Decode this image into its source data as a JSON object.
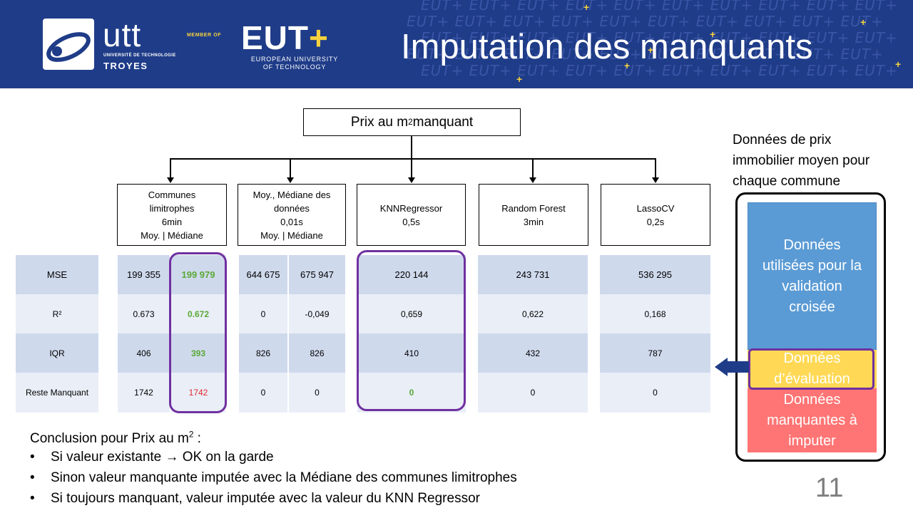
{
  "header": {
    "title": "Imputation des manquants",
    "utt_logo_text": "utt",
    "utt_subtitle": "UNIVERSITÉ DE TECHNOLOGIE",
    "utt_city": "TROYES",
    "member_of": "MEMBER OF",
    "eut_logo_text": "EUT",
    "eut_plus": "+",
    "eut_line1": "EUROPEAN UNIVERSITY",
    "eut_line2": "OF TECHNOLOGY",
    "pattern_text": "EUT+ EUT+ EUT+ EUT+ EUT+ EUT+ EUT+ EUT+ EUT+ EUT+",
    "colors": {
      "banner": "#1f3c88",
      "accent": "#f7d23e"
    }
  },
  "diagram": {
    "root_pre": "Prix au m",
    "root_sup": "2",
    "root_post": " manquant",
    "methods": [
      {
        "line1": "Communes",
        "line2": "limitrophes",
        "line3": "6min",
        "line4": "Moy. | Médiane"
      },
      {
        "line1": "Moy., Médiane des",
        "line2": "données",
        "line3": "0,01s",
        "line4": "Moy. | Médiane"
      },
      {
        "line1": "KNNRegressor",
        "line2": "0,5s"
      },
      {
        "line1": "Random Forest",
        "line2": "3min"
      },
      {
        "line1": "LassoCV",
        "line2": "0,2s"
      }
    ]
  },
  "table": {
    "row_labels": [
      "MSE",
      "R²",
      "IQR",
      "Reste Manquant"
    ],
    "communes_moy": [
      "199 355",
      "0.673",
      "406",
      "1742"
    ],
    "communes_med": [
      "199 979",
      "0.672",
      "393",
      "1742"
    ],
    "donnees_moy": [
      "644 675",
      "0",
      "826",
      "0"
    ],
    "donnees_med": [
      "675 947",
      "-0,049",
      "826",
      "0"
    ],
    "knn": [
      "220 144",
      "0,659",
      "410",
      "0"
    ],
    "rf": [
      "243 731",
      "0,622",
      "432",
      "0"
    ],
    "lasso": [
      "536 295",
      "0,168",
      "787",
      "0"
    ],
    "colors": {
      "highlight_green": "#5aa935",
      "highlight_red": "#e5262b",
      "frame_purple": "#7030a0"
    }
  },
  "side": {
    "title_l1": "Données de prix",
    "title_l2": "immobilier moyen pour",
    "title_l3": "chaque commune",
    "blue_l1": "Données",
    "blue_l2": "utilisées pour la",
    "blue_l3": "validation",
    "blue_l4": "croisée",
    "yellow_l1": "Données",
    "yellow_l2": "d’évaluation",
    "red_l1": "Données",
    "red_l2": "manquantes à",
    "red_l3": "imputer"
  },
  "conclusion": {
    "title_pre": "Conclusion pour Prix au m",
    "title_sup": "2",
    "title_post": " :",
    "bullets": [
      "Si valeur existante → OK on la garde",
      "Sinon valeur manquante imputée avec la Médiane des communes limitrophes",
      "Si toujours manquant, valeur imputée avec la valeur du KNN Regressor"
    ],
    "bullet_symbol": "•"
  },
  "page_number": "11"
}
